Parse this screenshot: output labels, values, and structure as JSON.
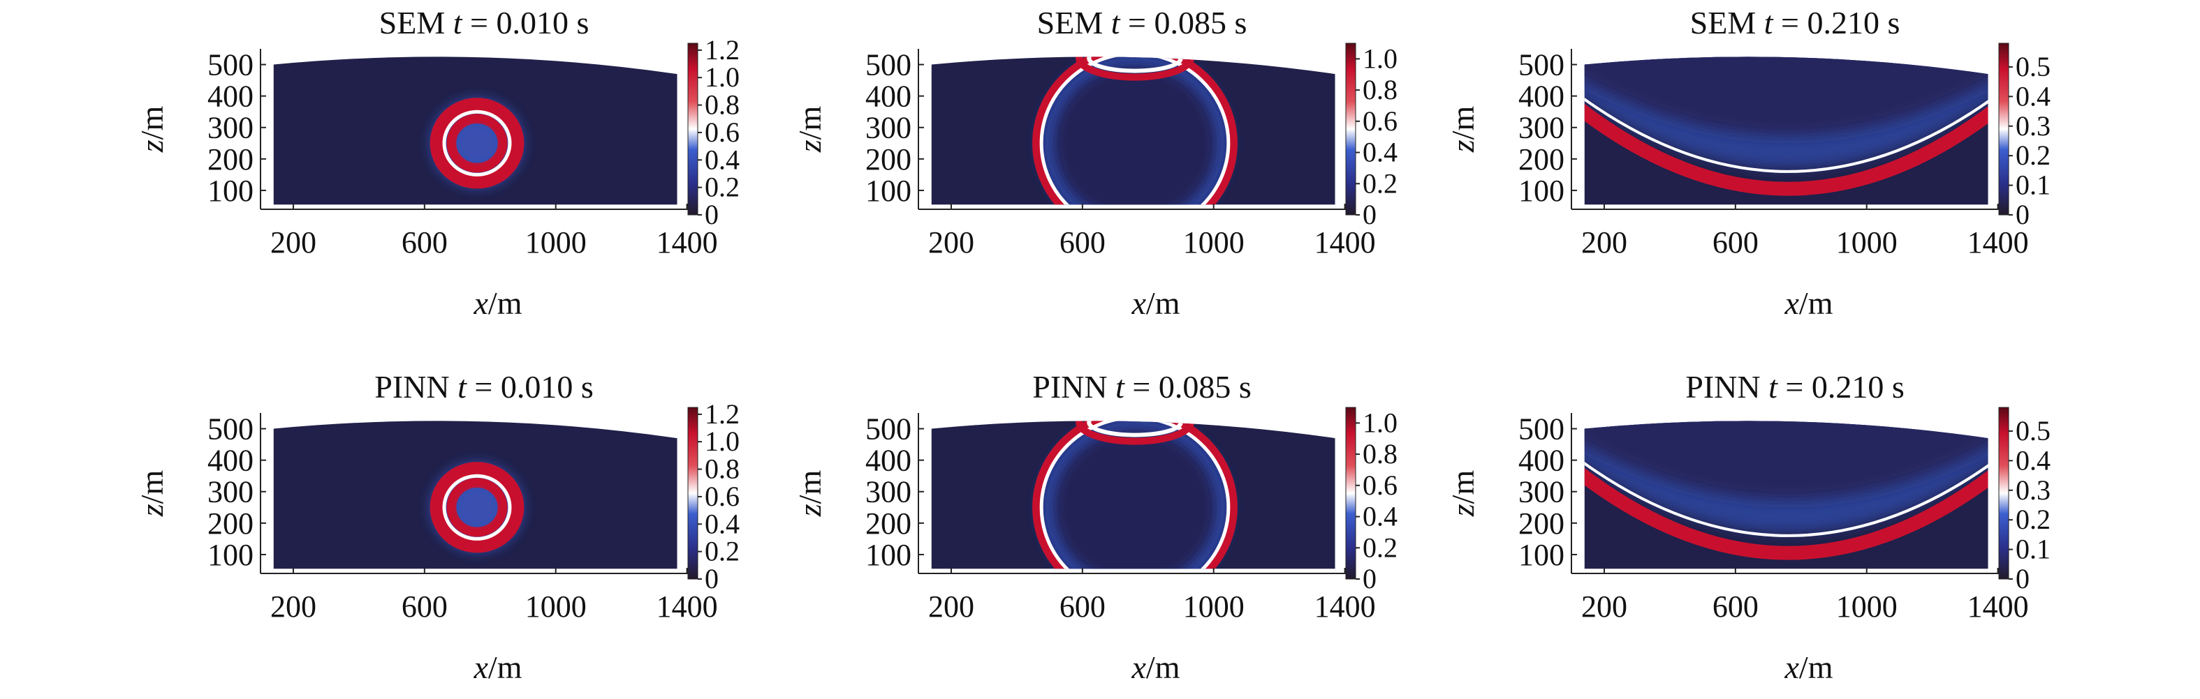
{
  "chart_data": [
    {
      "type": "heatmap",
      "method": "SEM",
      "title_time": "0.010",
      "title_unit": "s",
      "field": "source",
      "xlabel_var": "x",
      "xlabel_unit": "/m",
      "ylabel_var": "z",
      "ylabel_unit": "/m",
      "xticks": [
        200,
        600,
        1000,
        1400
      ],
      "yticks": [
        100,
        200,
        300,
        400,
        500
      ],
      "xlim": [
        100,
        1420
      ],
      "ylim": [
        40,
        550
      ],
      "colorbar": {
        "min": 0,
        "max": 1.25,
        "ticks": [
          "0",
          "0.2",
          "0.4",
          "0.6",
          "0.8",
          "1.0",
          "1.2"
        ],
        "tick_values": [
          0,
          0.2,
          0.4,
          0.6,
          0.8,
          1.0,
          1.2
        ]
      }
    },
    {
      "type": "heatmap",
      "method": "SEM",
      "title_time": "0.085",
      "title_unit": "s",
      "field": "expanding",
      "xlabel_var": "x",
      "xlabel_unit": "/m",
      "ylabel_var": "z",
      "ylabel_unit": "/m",
      "xticks": [
        200,
        600,
        1000,
        1400
      ],
      "yticks": [
        100,
        200,
        300,
        400,
        500
      ],
      "xlim": [
        100,
        1420
      ],
      "ylim": [
        40,
        550
      ],
      "colorbar": {
        "min": 0,
        "max": 1.1,
        "ticks": [
          "0",
          "0.2",
          "0.4",
          "0.6",
          "0.8",
          "1.0"
        ],
        "tick_values": [
          0,
          0.2,
          0.4,
          0.6,
          0.8,
          1.0
        ]
      }
    },
    {
      "type": "heatmap",
      "method": "SEM",
      "title_time": "0.210",
      "title_unit": "s",
      "field": "reflected",
      "xlabel_var": "x",
      "xlabel_unit": "/m",
      "ylabel_var": "z",
      "ylabel_unit": "/m",
      "xticks": [
        200,
        600,
        1000,
        1400
      ],
      "yticks": [
        100,
        200,
        300,
        400,
        500
      ],
      "xlim": [
        100,
        1420
      ],
      "ylim": [
        40,
        550
      ],
      "colorbar": {
        "min": 0,
        "max": 0.58,
        "ticks": [
          "0",
          "0.1",
          "0.2",
          "0.3",
          "0.4",
          "0.5"
        ],
        "tick_values": [
          0,
          0.1,
          0.2,
          0.3,
          0.4,
          0.5
        ]
      }
    },
    {
      "type": "heatmap",
      "method": "PINN",
      "title_time": "0.010",
      "title_unit": "s",
      "field": "source",
      "xlabel_var": "x",
      "xlabel_unit": "/m",
      "ylabel_var": "z",
      "ylabel_unit": "/m",
      "xticks": [
        200,
        600,
        1000,
        1400
      ],
      "yticks": [
        100,
        200,
        300,
        400,
        500
      ],
      "xlim": [
        100,
        1420
      ],
      "ylim": [
        40,
        550
      ],
      "colorbar": {
        "min": 0,
        "max": 1.25,
        "ticks": [
          "0",
          "0.2",
          "0.4",
          "0.6",
          "0.8",
          "1.0",
          "1.2"
        ],
        "tick_values": [
          0,
          0.2,
          0.4,
          0.6,
          0.8,
          1.0,
          1.2
        ]
      }
    },
    {
      "type": "heatmap",
      "method": "PINN",
      "title_time": "0.085",
      "title_unit": "s",
      "field": "expanding",
      "xlabel_var": "x",
      "xlabel_unit": "/m",
      "ylabel_var": "z",
      "ylabel_unit": "/m",
      "xticks": [
        200,
        600,
        1000,
        1400
      ],
      "yticks": [
        100,
        200,
        300,
        400,
        500
      ],
      "xlim": [
        100,
        1420
      ],
      "ylim": [
        40,
        550
      ],
      "colorbar": {
        "min": 0,
        "max": 1.1,
        "ticks": [
          "0",
          "0.2",
          "0.4",
          "0.6",
          "0.8",
          "1.0"
        ],
        "tick_values": [
          0,
          0.2,
          0.4,
          0.6,
          0.8,
          1.0
        ]
      }
    },
    {
      "type": "heatmap",
      "method": "PINN",
      "title_time": "0.210",
      "title_unit": "s",
      "field": "reflected",
      "xlabel_var": "x",
      "xlabel_unit": "/m",
      "ylabel_var": "z",
      "ylabel_unit": "/m",
      "xticks": [
        200,
        600,
        1000,
        1400
      ],
      "yticks": [
        100,
        200,
        300,
        400,
        500
      ],
      "xlim": [
        100,
        1420
      ],
      "ylim": [
        40,
        550
      ],
      "colorbar": {
        "min": 0,
        "max": 0.58,
        "ticks": [
          "0",
          "0.1",
          "0.2",
          "0.3",
          "0.4",
          "0.5"
        ],
        "tick_values": [
          0,
          0.1,
          0.2,
          0.3,
          0.4,
          0.5
        ]
      }
    }
  ],
  "colors": {
    "background_field": "#20204a",
    "wave_red": "#c8102e",
    "wave_white": "#ffffff",
    "wave_blue": "#3456c0",
    "cmap_dark": "#231a2a"
  },
  "symbols": {
    "time_var": "t",
    "equals": "="
  }
}
